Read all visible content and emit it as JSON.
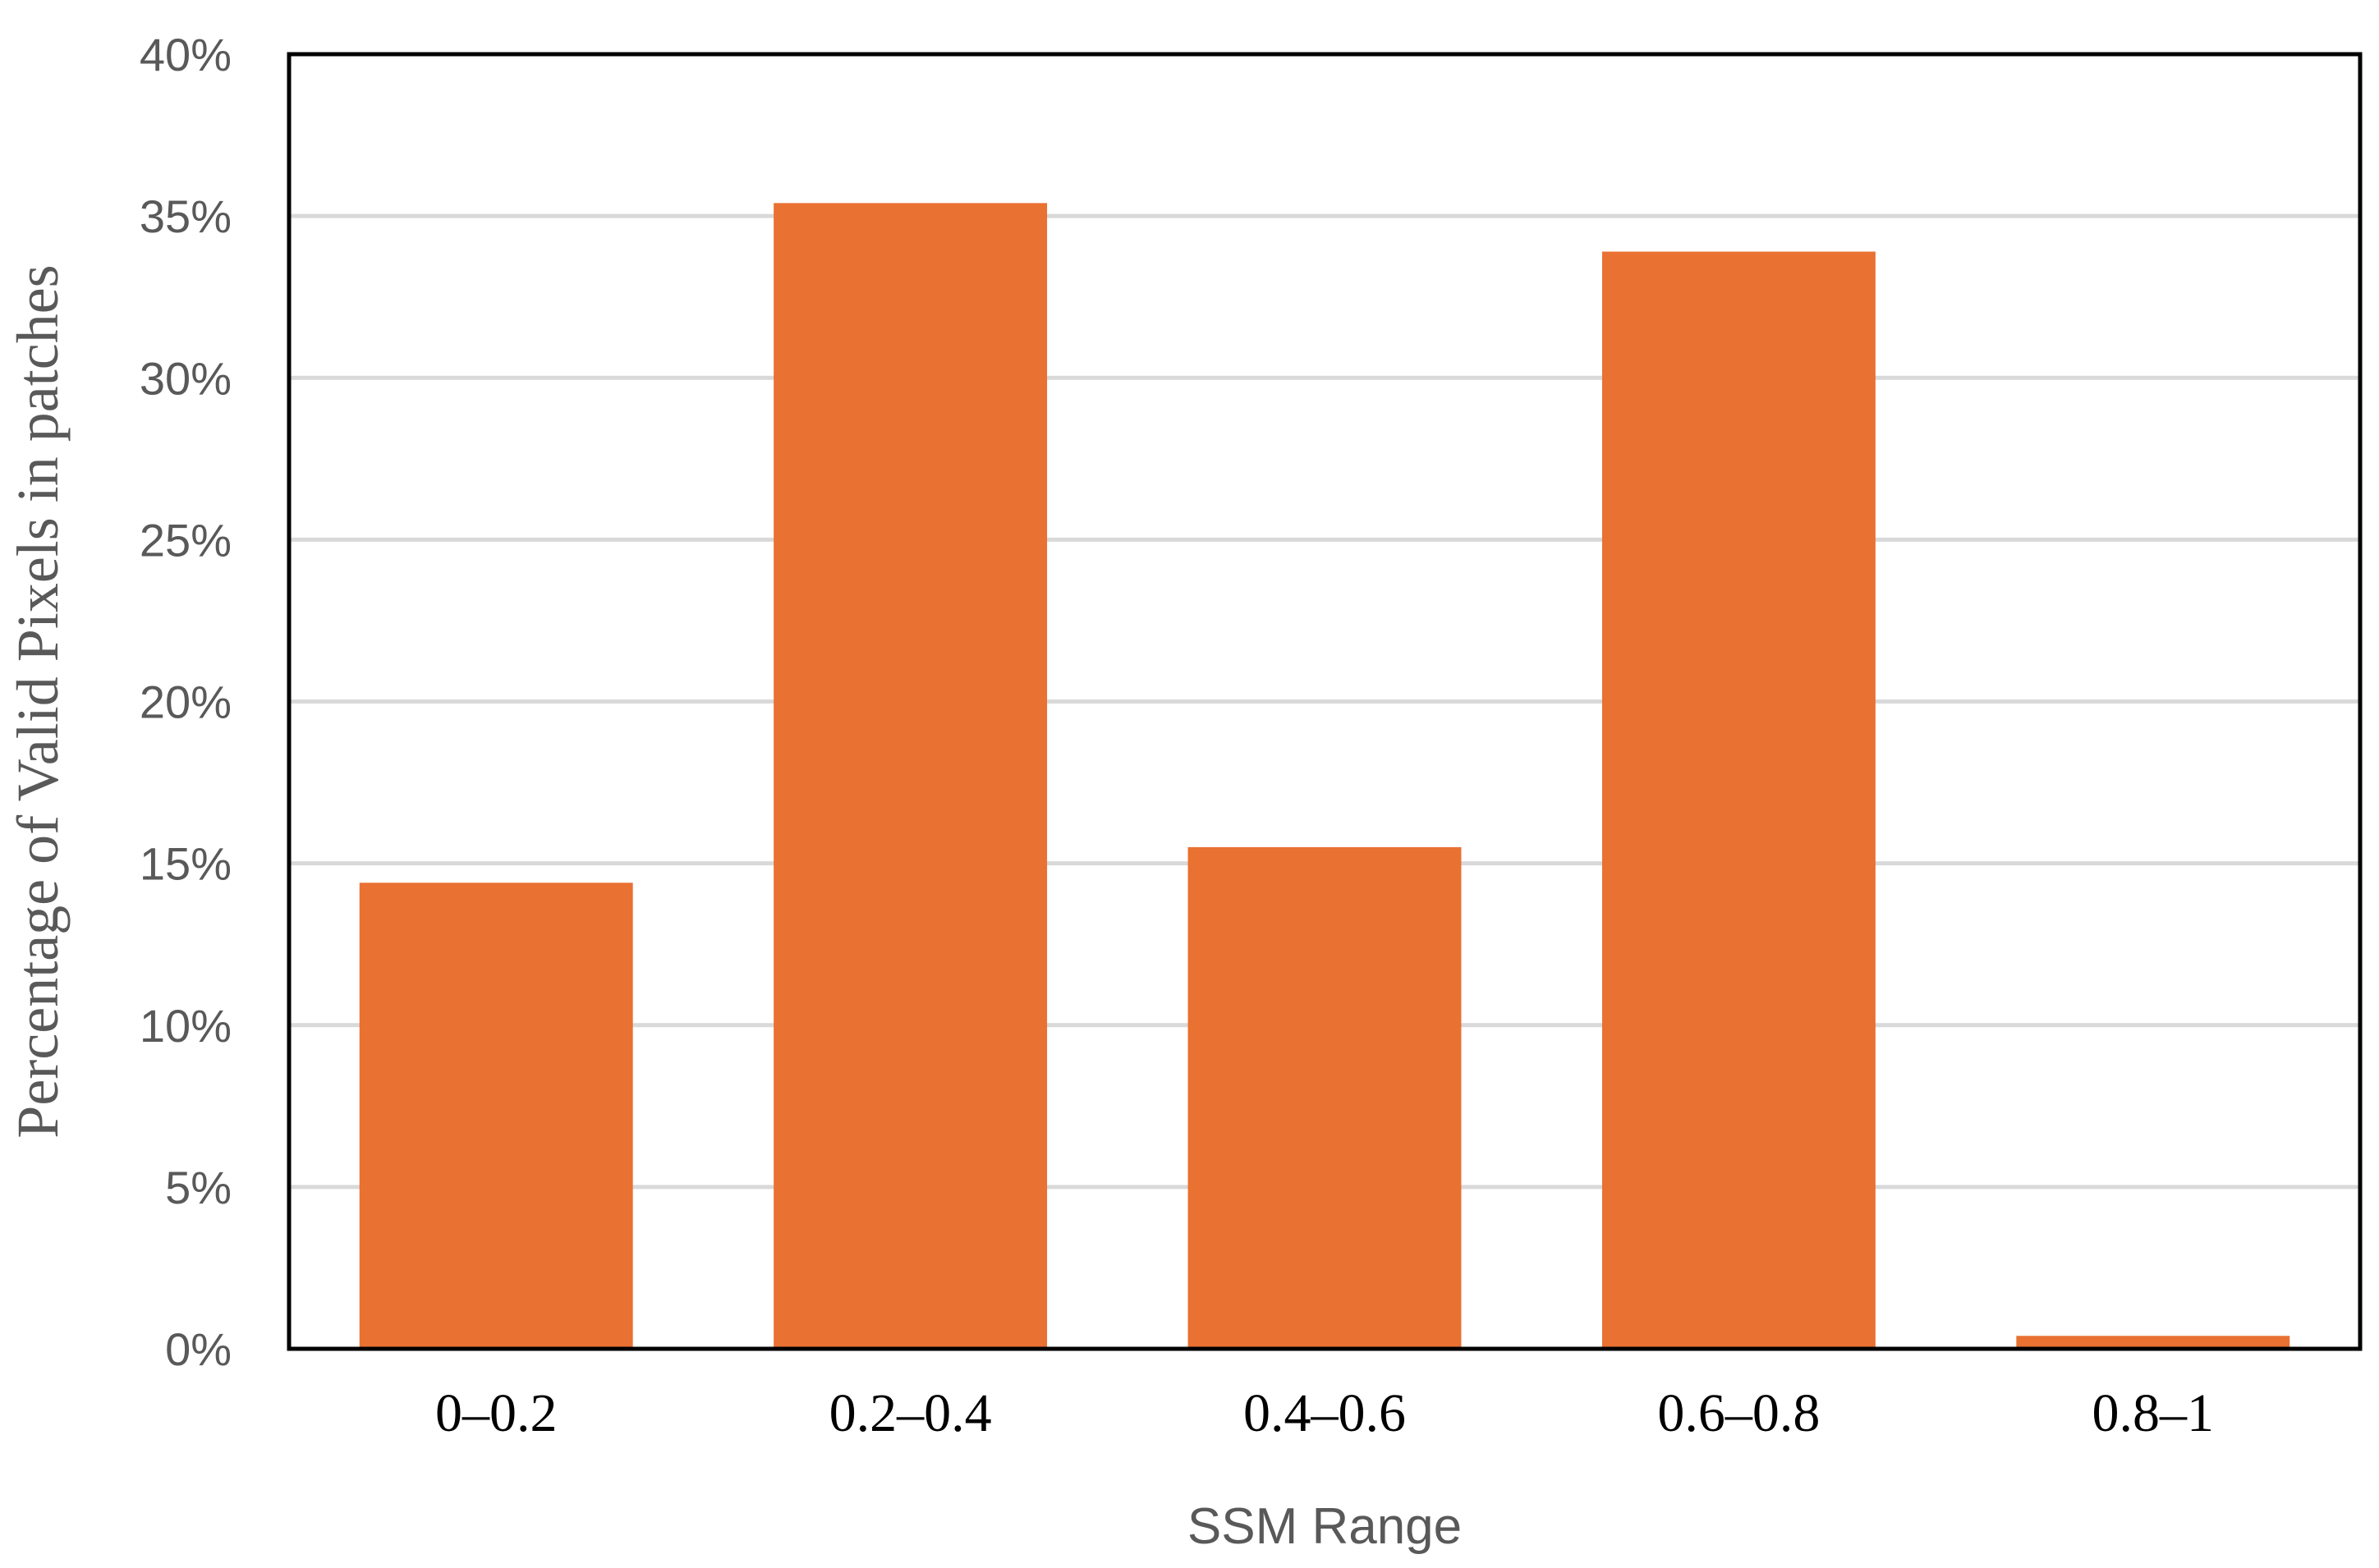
{
  "chart_data": {
    "type": "bar",
    "title": "",
    "xlabel": "SSM Range",
    "ylabel": "Percentage of Valid Pixels in patches",
    "categories": [
      "0–0.2",
      "0.2–0.4",
      "0.4–0.6",
      "0.6–0.8",
      "0.8–1"
    ],
    "values": [
      14.4,
      35.4,
      15.5,
      33.9,
      0.4
    ],
    "value_unit": "%",
    "ylim": [
      0,
      40
    ],
    "yticks": [
      "0%",
      "5%",
      "10%",
      "15%",
      "20%",
      "25%",
      "30%",
      "35%",
      "40%"
    ],
    "grid": true,
    "legend": "none",
    "bar_color": "#E97132",
    "grid_color": "#D9D9D9",
    "axis_color": "#000000"
  }
}
